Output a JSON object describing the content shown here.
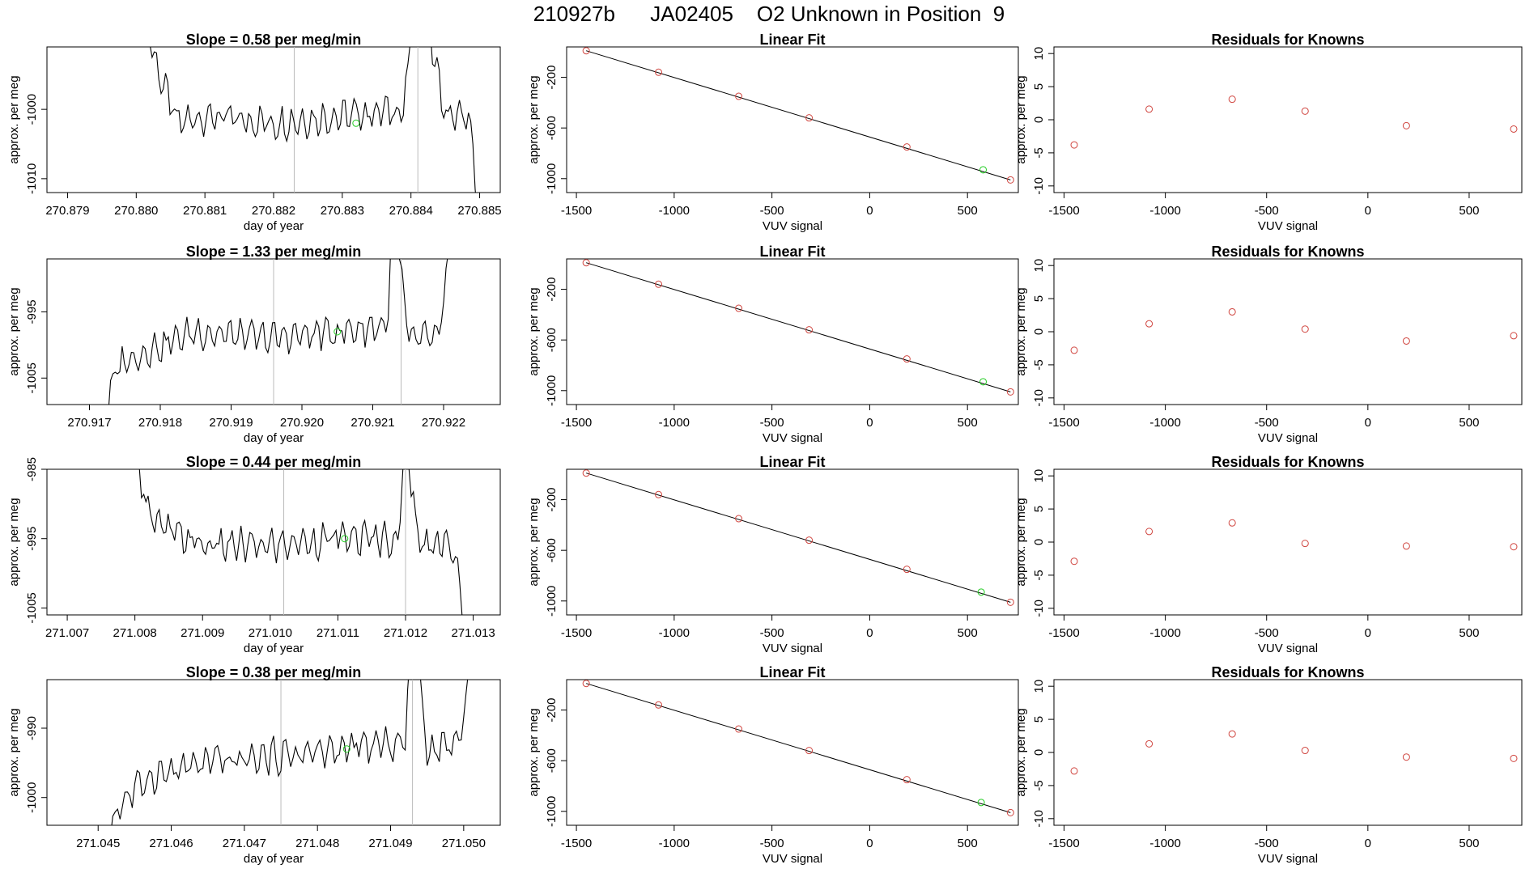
{
  "figure": {
    "title": "210927b      JA02405    O2 Unknown in Position  9"
  },
  "colors": {
    "trace": "#000000",
    "known_point": "#d0453f",
    "unknown_point": "#22cc22",
    "vline": "#bbbbbb"
  },
  "chart_data": [
    {
      "type": "line",
      "panel": "time-series",
      "row": 1,
      "title": "Slope =  0.58  per meg/min",
      "xlabel": "day of year",
      "ylabel": "approx. per meg",
      "xlim": [
        270.8787,
        270.8853
      ],
      "ylim": [
        -1012,
        -991
      ],
      "xticks": [
        "270.879",
        "270.880",
        "270.881",
        "270.882",
        "270.883",
        "270.884",
        "270.885"
      ],
      "yticks": [
        "-1000",
        "-1010"
      ],
      "vlines": [
        270.8823,
        270.8841
      ],
      "unknown_point": {
        "x": 270.8832,
        "y": -1002
      },
      "series_start": 270.8801,
      "series_end": 270.885,
      "trend": [
        [
          270.8801,
          -985
        ],
        [
          270.8803,
          -994
        ],
        [
          270.8806,
          -1002
        ],
        [
          270.881,
          -1001
        ],
        [
          270.882,
          -1002
        ],
        [
          270.883,
          -1001
        ],
        [
          270.8839,
          -1000
        ],
        [
          270.8841,
          -980
        ],
        [
          270.8845,
          -1001
        ],
        [
          270.8848,
          -1001
        ],
        [
          270.8849,
          -1005
        ],
        [
          270.885,
          -1020
        ]
      ],
      "wiggle": 2.4
    },
    {
      "type": "scatter",
      "panel": "linear-fit",
      "row": 1,
      "title": "Linear Fit",
      "xlabel": "VUV signal",
      "ylabel": "approx. per meg",
      "xlim": [
        -1550,
        760
      ],
      "ylim": [
        -1110,
        40
      ],
      "xticks": [
        "-1500",
        "-1000",
        "-500",
        "0",
        "500"
      ],
      "yticks": [
        "-200",
        "-600",
        "-1000"
      ],
      "knowns": [
        [
          -1450,
          10
        ],
        [
          -1080,
          -160
        ],
        [
          -670,
          -350
        ],
        [
          -310,
          -520
        ],
        [
          190,
          -750
        ],
        [
          720,
          -1010
        ]
      ],
      "unknown": [
        580,
        -930
      ],
      "fit_line": [
        [
          -1450,
          10
        ],
        [
          720,
          -1010
        ]
      ]
    },
    {
      "type": "scatter",
      "panel": "residuals",
      "row": 1,
      "title": "Residuals for Knowns",
      "xlabel": "VUV signal",
      "ylabel": "approx. per meg",
      "xlim": [
        -1550,
        760
      ],
      "ylim": [
        -11,
        11
      ],
      "xticks": [
        "-1500",
        "-1000",
        "-500",
        "0",
        "500"
      ],
      "yticks": [
        "10",
        "5",
        "0",
        "-5",
        "-10"
      ],
      "points": [
        [
          -1450,
          -3.8
        ],
        [
          -1080,
          1.6
        ],
        [
          -670,
          3.1
        ],
        [
          -310,
          1.3
        ],
        [
          190,
          -0.9
        ],
        [
          720,
          -1.4
        ]
      ]
    },
    {
      "type": "line",
      "panel": "time-series",
      "row": 2,
      "title": "Slope =  1.33  per meg/min",
      "xlabel": "day of year",
      "ylabel": "approx. per meg",
      "xlim": [
        270.9164,
        270.9228
      ],
      "ylim": [
        -1009,
        -987
      ],
      "xticks": [
        "270.917",
        "270.918",
        "270.919",
        "270.920",
        "270.921",
        "270.922"
      ],
      "yticks": [
        "-995",
        "-1005"
      ],
      "vlines": [
        270.9196,
        270.9214
      ],
      "unknown_point": {
        "x": 270.9205,
        "y": -998
      },
      "series_start": 270.9172,
      "series_end": 270.9221,
      "trend": [
        [
          270.9172,
          -1012
        ],
        [
          270.9174,
          -1003
        ],
        [
          270.9178,
          -1001
        ],
        [
          270.9185,
          -998
        ],
        [
          270.9195,
          -999
        ],
        [
          270.9205,
          -998
        ],
        [
          270.9212,
          -997
        ],
        [
          270.9213,
          -980
        ],
        [
          270.9215,
          -999
        ],
        [
          270.9219,
          -999
        ],
        [
          270.922,
          -995
        ],
        [
          270.9221,
          -983
        ]
      ],
      "wiggle": 2.4
    },
    {
      "type": "scatter",
      "panel": "linear-fit",
      "row": 2,
      "title": "Linear Fit",
      "xlabel": "VUV signal",
      "ylabel": "approx. per meg",
      "xlim": [
        -1550,
        760
      ],
      "ylim": [
        -1110,
        40
      ],
      "xticks": [
        "-1500",
        "-1000",
        "-500",
        "0",
        "500"
      ],
      "yticks": [
        "-200",
        "-600",
        "-1000"
      ],
      "knowns": [
        [
          -1450,
          10
        ],
        [
          -1080,
          -160
        ],
        [
          -670,
          -350
        ],
        [
          -310,
          -520
        ],
        [
          190,
          -750
        ],
        [
          720,
          -1010
        ]
      ],
      "unknown": [
        580,
        -930
      ],
      "fit_line": [
        [
          -1450,
          10
        ],
        [
          720,
          -1010
        ]
      ]
    },
    {
      "type": "scatter",
      "panel": "residuals",
      "row": 2,
      "title": "Residuals for Knowns",
      "xlabel": "VUV signal",
      "ylabel": "approx. per meg",
      "xlim": [
        -1550,
        760
      ],
      "ylim": [
        -11,
        11
      ],
      "xticks": [
        "-1500",
        "-1000",
        "-500",
        "0",
        "500"
      ],
      "yticks": [
        "10",
        "5",
        "0",
        "-5",
        "-10"
      ],
      "points": [
        [
          -1450,
          -2.8
        ],
        [
          -1080,
          1.2
        ],
        [
          -670,
          3.0
        ],
        [
          -310,
          0.4
        ],
        [
          190,
          -1.4
        ],
        [
          720,
          -0.6
        ]
      ]
    },
    {
      "type": "line",
      "panel": "time-series",
      "row": 3,
      "title": "Slope =  0.44  per meg/min",
      "xlabel": "day of year",
      "ylabel": "approx. per meg",
      "xlim": [
        271.0067,
        271.0134
      ],
      "ylim": [
        -1006,
        -985
      ],
      "xticks": [
        "271.007",
        "271.008",
        "271.009",
        "271.010",
        "271.011",
        "271.012",
        "271.013"
      ],
      "yticks": [
        "-985",
        "-995",
        "-1005"
      ],
      "vlines": [
        271.0102,
        271.012
      ],
      "unknown_point": {
        "x": 271.0111,
        "y": -995
      },
      "series_start": 271.008,
      "series_end": 271.0129,
      "trend": [
        [
          271.008,
          -980
        ],
        [
          271.0081,
          -987
        ],
        [
          271.0083,
          -993
        ],
        [
          271.009,
          -996
        ],
        [
          271.01,
          -996
        ],
        [
          271.011,
          -995
        ],
        [
          271.0119,
          -995
        ],
        [
          271.012,
          -980
        ],
        [
          271.0122,
          -996
        ],
        [
          271.0126,
          -995
        ],
        [
          271.0128,
          -1001
        ],
        [
          271.0129,
          -1012
        ]
      ],
      "wiggle": 2.4
    },
    {
      "type": "scatter",
      "panel": "linear-fit",
      "row": 3,
      "title": "Linear Fit",
      "xlabel": "VUV signal",
      "ylabel": "approx. per meg",
      "xlim": [
        -1550,
        760
      ],
      "ylim": [
        -1110,
        40
      ],
      "xticks": [
        "-1500",
        "-1000",
        "-500",
        "0",
        "500"
      ],
      "yticks": [
        "-200",
        "-600",
        "-1000"
      ],
      "knowns": [
        [
          -1450,
          10
        ],
        [
          -1080,
          -160
        ],
        [
          -670,
          -350
        ],
        [
          -310,
          -520
        ],
        [
          190,
          -750
        ],
        [
          720,
          -1010
        ]
      ],
      "unknown": [
        570,
        -930
      ],
      "fit_line": [
        [
          -1450,
          10
        ],
        [
          720,
          -1010
        ]
      ]
    },
    {
      "type": "scatter",
      "panel": "residuals",
      "row": 3,
      "title": "Residuals for Knowns",
      "xlabel": "VUV signal",
      "ylabel": "approx. per meg",
      "xlim": [
        -1550,
        760
      ],
      "ylim": [
        -11,
        11
      ],
      "xticks": [
        "-1500",
        "-1000",
        "-500",
        "0",
        "500"
      ],
      "yticks": [
        "10",
        "5",
        "0",
        "-5",
        "-10"
      ],
      "points": [
        [
          -1450,
          -2.9
        ],
        [
          -1080,
          1.6
        ],
        [
          -670,
          2.9
        ],
        [
          -310,
          -0.2
        ],
        [
          190,
          -0.6
        ],
        [
          720,
          -0.7
        ]
      ]
    },
    {
      "type": "line",
      "panel": "time-series",
      "row": 4,
      "title": "Slope =  0.38  per meg/min",
      "xlabel": "day of year",
      "ylabel": "approx. per meg",
      "xlim": [
        271.0443,
        271.0505
      ],
      "ylim": [
        -1004,
        -983
      ],
      "xticks": [
        "271.045",
        "271.046",
        "271.047",
        "271.048",
        "271.049",
        "271.050"
      ],
      "yticks": [
        "-990",
        "-1000"
      ],
      "vlines": [
        271.0475,
        271.0493
      ],
      "unknown_point": {
        "x": 271.0484,
        "y": -993
      },
      "series_start": 271.0451,
      "series_end": 271.0501,
      "trend": [
        [
          271.0451,
          -1006
        ],
        [
          271.0453,
          -1001
        ],
        [
          271.0457,
          -997
        ],
        [
          271.0465,
          -995
        ],
        [
          271.0475,
          -994
        ],
        [
          271.0484,
          -993
        ],
        [
          271.0492,
          -992
        ],
        [
          271.0493,
          -975
        ],
        [
          271.0495,
          -993
        ],
        [
          271.0499,
          -992
        ],
        [
          271.05,
          -989
        ],
        [
          271.0501,
          -978
        ]
      ],
      "wiggle": 2.4
    },
    {
      "type": "scatter",
      "panel": "linear-fit",
      "row": 4,
      "title": "Linear Fit",
      "xlabel": "VUV signal",
      "ylabel": "approx. per meg",
      "xlim": [
        -1550,
        760
      ],
      "ylim": [
        -1110,
        40
      ],
      "xticks": [
        "-1500",
        "-1000",
        "-500",
        "0",
        "500"
      ],
      "yticks": [
        "-200",
        "-600",
        "-1000"
      ],
      "knowns": [
        [
          -1450,
          10
        ],
        [
          -1080,
          -160
        ],
        [
          -670,
          -350
        ],
        [
          -310,
          -520
        ],
        [
          190,
          -750
        ],
        [
          720,
          -1010
        ]
      ],
      "unknown": [
        570,
        -930
      ],
      "fit_line": [
        [
          -1450,
          10
        ],
        [
          720,
          -1010
        ]
      ]
    },
    {
      "type": "scatter",
      "panel": "residuals",
      "row": 4,
      "title": "Residuals for Knowns",
      "xlabel": "VUV signal",
      "ylabel": "approx. per meg",
      "xlim": [
        -1550,
        760
      ],
      "ylim": [
        -11,
        11
      ],
      "xticks": [
        "-1500",
        "-1000",
        "-500",
        "0",
        "500"
      ],
      "yticks": [
        "10",
        "5",
        "0",
        "-5",
        "-10"
      ],
      "points": [
        [
          -1450,
          -2.8
        ],
        [
          -1080,
          1.3
        ],
        [
          -670,
          2.8
        ],
        [
          -310,
          0.3
        ],
        [
          190,
          -0.7
        ],
        [
          720,
          -0.9
        ]
      ]
    }
  ]
}
